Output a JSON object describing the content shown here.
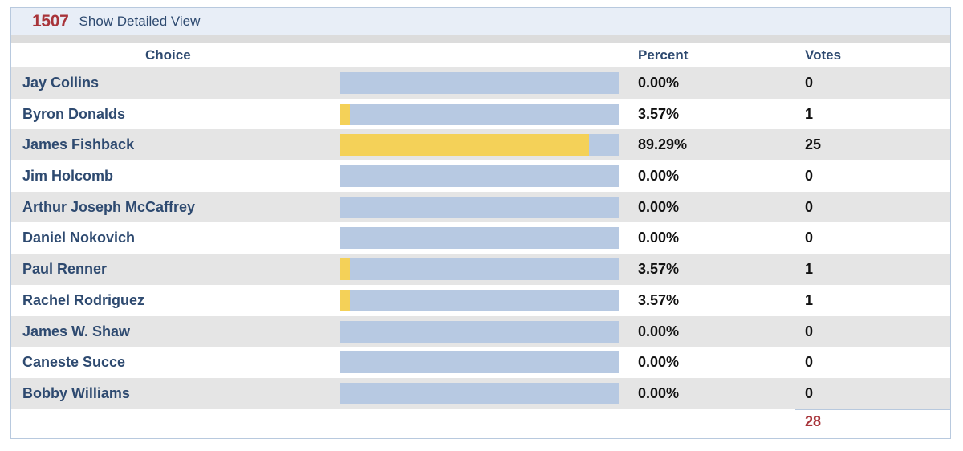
{
  "header": {
    "race_number": "1507",
    "detail_link": "Show Detailed View"
  },
  "columns": {
    "choice": "Choice",
    "percent": "Percent",
    "votes": "Votes"
  },
  "candidates": [
    {
      "name": "Jay Collins",
      "percent": "0.00%",
      "votes": "0",
      "share": 0.0
    },
    {
      "name": "Byron Donalds",
      "percent": "3.57%",
      "votes": "1",
      "share": 0.0357
    },
    {
      "name": "James Fishback",
      "percent": "89.29%",
      "votes": "25",
      "share": 0.8929
    },
    {
      "name": "Jim Holcomb",
      "percent": "0.00%",
      "votes": "0",
      "share": 0.0
    },
    {
      "name": "Arthur Joseph McCaffrey",
      "percent": "0.00%",
      "votes": "0",
      "share": 0.0
    },
    {
      "name": "Daniel Nokovich",
      "percent": "0.00%",
      "votes": "0",
      "share": 0.0
    },
    {
      "name": "Paul Renner",
      "percent": "3.57%",
      "votes": "1",
      "share": 0.0357
    },
    {
      "name": "Rachel Rodriguez",
      "percent": "3.57%",
      "votes": "1",
      "share": 0.0357
    },
    {
      "name": "James W. Shaw",
      "percent": "0.00%",
      "votes": "0",
      "share": 0.0
    },
    {
      "name": "Caneste Succe",
      "percent": "0.00%",
      "votes": "0",
      "share": 0.0
    },
    {
      "name": "Bobby Williams",
      "percent": "0.00%",
      "votes": "0",
      "share": 0.0
    }
  ],
  "total_votes": "28",
  "colors": {
    "bar_track": "#b7c9e2",
    "bar_fill": "#f4d158",
    "accent_red": "#a8343a",
    "label_blue": "#2e4a70"
  }
}
